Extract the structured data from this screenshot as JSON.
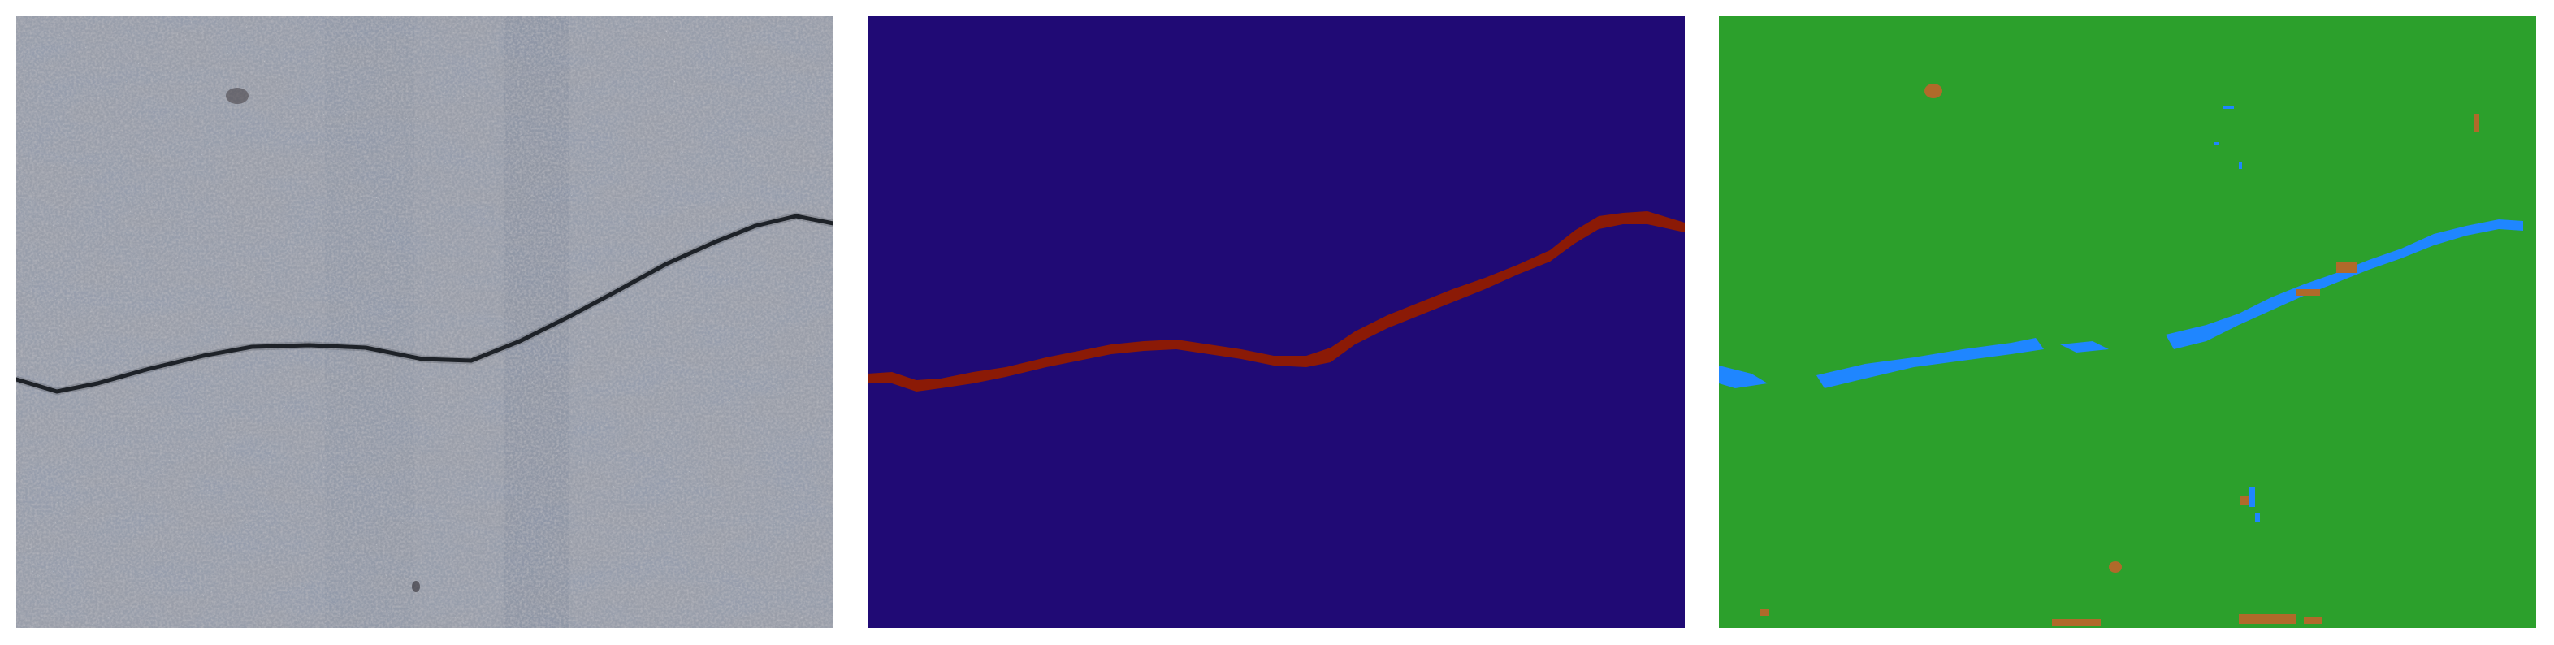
{
  "figure": {
    "panels": [
      {
        "id": "photo",
        "content": "concrete-surface-with-crack"
      },
      {
        "id": "ground-truth",
        "content": "binary-crack-mask"
      },
      {
        "id": "prediction",
        "content": "predicted-segmentation-map"
      }
    ],
    "colors": {
      "concrete_base": "#b9c2cb",
      "concrete_light": "#d8dbdc",
      "concrete_dark": "#7f93ad",
      "crack_dark": "#14181e",
      "mask_background": "#200a75",
      "mask_crack": "#8b1a06",
      "pred_background": "#2ca02c",
      "pred_crack": "#1f86ff",
      "pred_noise": "#b06a2a"
    }
  }
}
